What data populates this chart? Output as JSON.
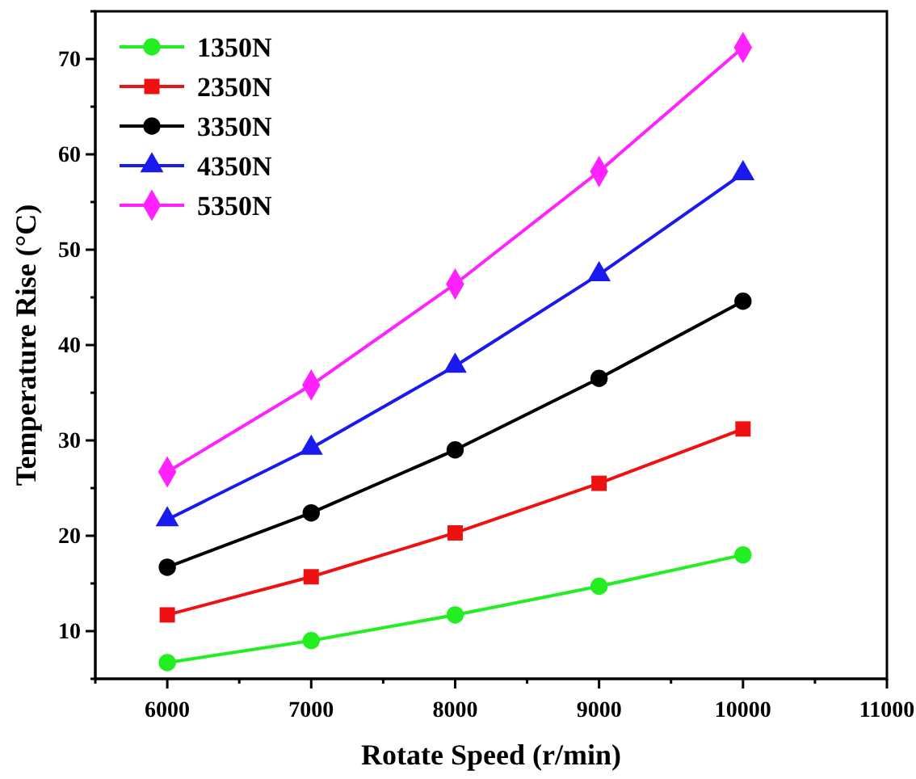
{
  "chart_data": {
    "type": "line",
    "xlabel": "Rotate Speed (r/min)",
    "ylabel": "Temperature Rise (°C)",
    "x": [
      6000,
      7000,
      8000,
      9000,
      10000
    ],
    "xlim": [
      5500,
      11000
    ],
    "xticks": [
      {
        "value": 5500,
        "label": null
      },
      6000,
      {
        "value": 6500,
        "label": null
      },
      7000,
      {
        "value": 7500,
        "label": null
      },
      8000,
      {
        "value": 8500,
        "label": null
      },
      9000,
      {
        "value": 9500,
        "label": null
      },
      10000,
      {
        "value": 10500,
        "label": null
      },
      11000
    ],
    "ylim": [
      5,
      75
    ],
    "yticks": [
      {
        "value": 5,
        "label": null
      },
      10,
      {
        "value": 15,
        "label": null
      },
      20,
      {
        "value": 25,
        "label": null
      },
      30,
      {
        "value": 35,
        "label": null
      },
      40,
      {
        "value": 45,
        "label": null
      },
      50,
      {
        "value": 55,
        "label": null
      },
      60,
      {
        "value": 65,
        "label": null
      },
      70,
      {
        "value": 75,
        "label": null
      }
    ],
    "grid": false,
    "legend": "top left",
    "line_style": "solid",
    "series": [
      {
        "name": "1350N",
        "color": "#22ee22",
        "marker": "circle",
        "values": [
          6.7,
          9.0,
          11.7,
          14.7,
          18.0
        ]
      },
      {
        "name": "2350N",
        "color": "#ee1111",
        "marker": "square",
        "values": [
          11.7,
          15.7,
          20.3,
          25.5,
          31.2
        ]
      },
      {
        "name": "3350N",
        "color": "#000000",
        "marker": "circle",
        "values": [
          16.7,
          22.4,
          29.0,
          36.5,
          44.6
        ]
      },
      {
        "name": "4350N",
        "color": "#1a1aee",
        "marker": "triangle",
        "values": [
          21.7,
          29.2,
          37.8,
          47.4,
          58.0
        ]
      },
      {
        "name": "5350N",
        "color": "#ff22ff",
        "marker": "diamond",
        "values": [
          26.7,
          35.8,
          46.4,
          58.2,
          71.2
        ]
      }
    ]
  }
}
